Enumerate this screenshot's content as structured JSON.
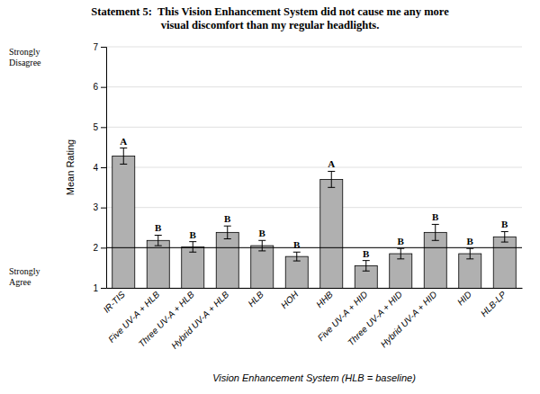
{
  "chart_data": {
    "type": "bar",
    "title": "Statement 5:  This Vision Enhancement System did not cause me any more\nvisual discomfort than my regular headlights.",
    "x_label": "Vision Enhancement System (HLB = baseline)",
    "y_label": "Mean Rating",
    "categories": [
      "IR-TIS",
      "Five UV-A + HLB",
      "Three UV-A + HLB",
      "Hybrid UV-A + HLB",
      "HLB",
      "HOH",
      "HHB",
      "Five UV-A + HID",
      "Three UV-A + HID",
      "Hybrid UV-A + HID",
      "HID",
      "HLB-LP"
    ],
    "values": [
      4.28,
      2.18,
      2.02,
      2.38,
      2.05,
      1.78,
      3.7,
      1.55,
      1.85,
      2.38,
      1.85,
      2.27
    ],
    "errors": [
      0.2,
      0.13,
      0.13,
      0.16,
      0.13,
      0.11,
      0.2,
      0.13,
      0.13,
      0.2,
      0.13,
      0.13
    ],
    "letters": [
      "A",
      "B",
      "B",
      "B",
      "B",
      "B",
      "A",
      "B",
      "B",
      "B",
      "B",
      "B"
    ],
    "annotations": [
      "Strongly\nDisagree",
      "Strongly\nAgree"
    ],
    "reference_line": 2,
    "color": "#b0b0b0",
    "ylim": [
      1,
      7
    ],
    "yticks": [
      1,
      2,
      3,
      4,
      5,
      6,
      7
    ],
    "grid": true
  }
}
